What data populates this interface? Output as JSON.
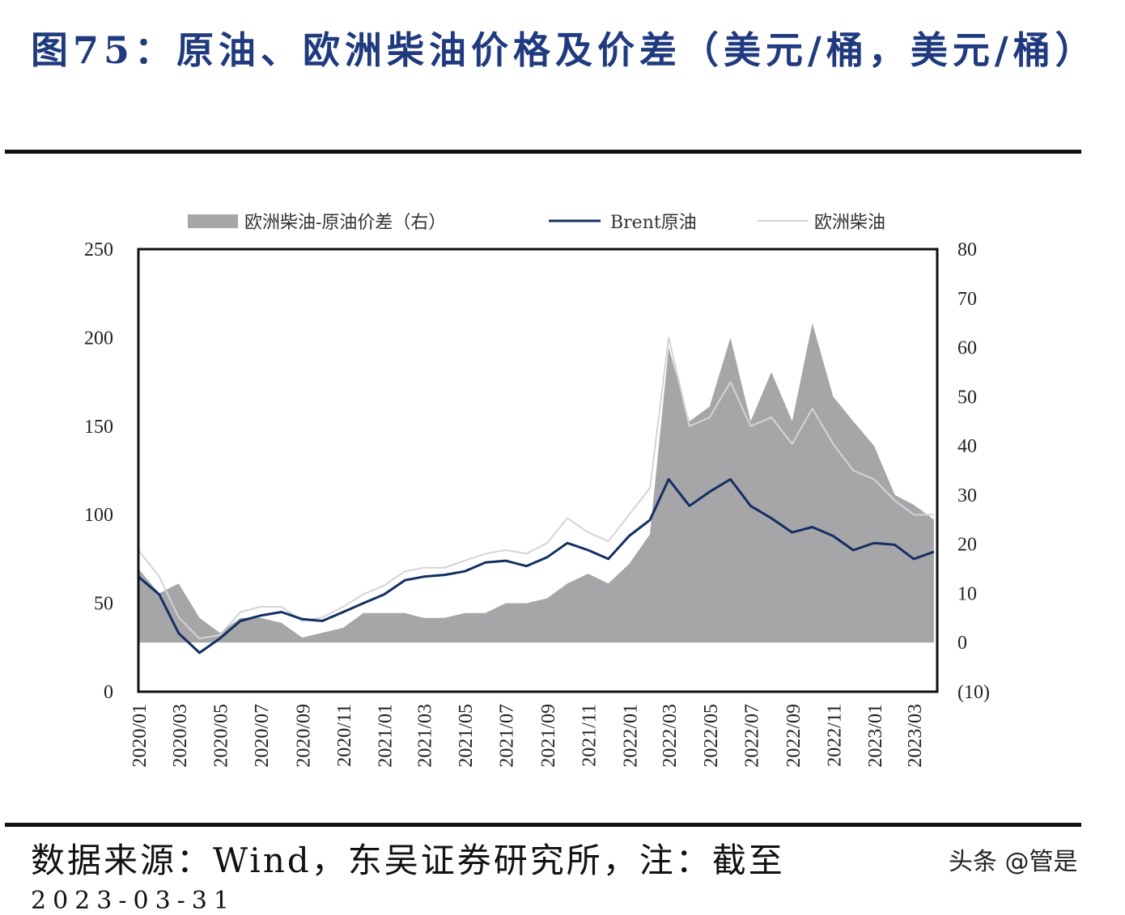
{
  "title": "图75：原油、欧洲柴油价格及价差（美元/桶，美元/桶）",
  "source": "数据来源：Wind，东吴证券研究所，注：截至",
  "source_cont": "2023-03-31",
  "watermark": "头条 @管是",
  "chart_data": {
    "type": "line",
    "title": "",
    "legend_position": "top",
    "grid": false,
    "colors": {
      "spread": "#a6a6a8",
      "brent": "#132f63",
      "diesel": "#d4d4d8",
      "negative_tick": "#c0392b"
    },
    "left_axis": {
      "ylim": [
        0,
        250
      ],
      "ticks": [
        "0",
        "50",
        "100",
        "150",
        "200",
        "250"
      ]
    },
    "right_axis": {
      "ylim": [
        -10,
        80
      ],
      "ticks": [
        "(10)",
        "0",
        "10",
        "20",
        "30",
        "40",
        "50",
        "60",
        "70",
        "80"
      ]
    },
    "x_ticks": [
      "2020/01",
      "2020/03",
      "2020/05",
      "2020/07",
      "2020/09",
      "2020/11",
      "2021/01",
      "2021/03",
      "2021/05",
      "2021/07",
      "2021/09",
      "2021/11",
      "2022/01",
      "2022/03",
      "2022/05",
      "2022/07",
      "2022/09",
      "2022/11",
      "2023/01",
      "2023/03"
    ],
    "x": [
      "2020-01-01",
      "2020-02-01",
      "2020-03-01",
      "2020-04-01",
      "2020-05-01",
      "2020-06-01",
      "2020-07-01",
      "2020-08-01",
      "2020-09-01",
      "2020-10-01",
      "2020-11-01",
      "2020-12-01",
      "2021-01-01",
      "2021-02-01",
      "2021-03-01",
      "2021-04-01",
      "2021-05-01",
      "2021-06-01",
      "2021-07-01",
      "2021-08-01",
      "2021-09-01",
      "2021-10-01",
      "2021-11-01",
      "2021-12-01",
      "2022-01-01",
      "2022-02-01",
      "2022-03-01",
      "2022-04-01",
      "2022-05-01",
      "2022-06-01",
      "2022-07-01",
      "2022-08-01",
      "2022-09-01",
      "2022-10-01",
      "2022-11-01",
      "2022-12-01",
      "2023-01-01",
      "2023-02-01",
      "2023-03-01",
      "2023-03-31"
    ],
    "series": [
      {
        "name": "欧洲柴油-原油价差（右）",
        "axis": "right",
        "kind": "area",
        "values": [
          15,
          10,
          12,
          5,
          2,
          5,
          5,
          4,
          1,
          2,
          3,
          6,
          6,
          6,
          5,
          5,
          6,
          6,
          8,
          8,
          9,
          12,
          14,
          12,
          16,
          22,
          60,
          45,
          48,
          62,
          45,
          55,
          45,
          65,
          50,
          45,
          40,
          30,
          28,
          25
        ]
      },
      {
        "name": "Brent原油",
        "axis": "left",
        "kind": "line",
        "values": [
          65,
          55,
          33,
          22,
          30,
          40,
          43,
          45,
          41,
          40,
          45,
          50,
          55,
          63,
          65,
          66,
          68,
          73,
          74,
          71,
          76,
          84,
          80,
          75,
          88,
          97,
          120,
          105,
          113,
          120,
          105,
          98,
          90,
          93,
          88,
          80,
          84,
          83,
          75,
          79
        ]
      },
      {
        "name": "欧洲柴油",
        "axis": "left",
        "kind": "line",
        "values": [
          80,
          65,
          42,
          30,
          32,
          45,
          48,
          48,
          40,
          42,
          48,
          55,
          60,
          68,
          70,
          70,
          74,
          78,
          80,
          78,
          84,
          98,
          90,
          85,
          100,
          115,
          200,
          150,
          155,
          175,
          150,
          155,
          140,
          160,
          140,
          125,
          120,
          108,
          100,
          100
        ]
      }
    ]
  }
}
